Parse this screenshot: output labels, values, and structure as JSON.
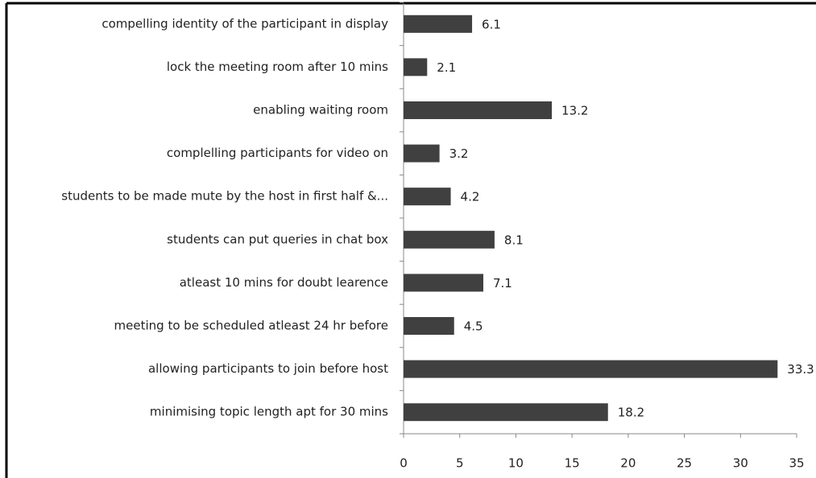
{
  "chart_data": {
    "type": "bar",
    "orientation": "horizontal",
    "categories": [
      "compelling identity of the participant in display",
      "lock the meeting room after 10 mins",
      "enabling waiting room",
      "complelling participants for video on",
      "students to be made mute by the host in first half &...",
      "students can put queries in chat box",
      "atleast 10 mins for doubt learence",
      "meeting to be scheduled atleast 24 hr before",
      "allowing participants to join before host",
      "minimising topic length apt for 30 mins"
    ],
    "values": [
      6.1,
      2.1,
      13.2,
      3.2,
      4.2,
      8.1,
      7.1,
      4.5,
      33.3,
      18.2
    ],
    "color": "#404040",
    "xlim": [
      0,
      35
    ],
    "xticks": [
      0,
      5,
      10,
      15,
      20,
      25,
      30,
      35
    ]
  }
}
